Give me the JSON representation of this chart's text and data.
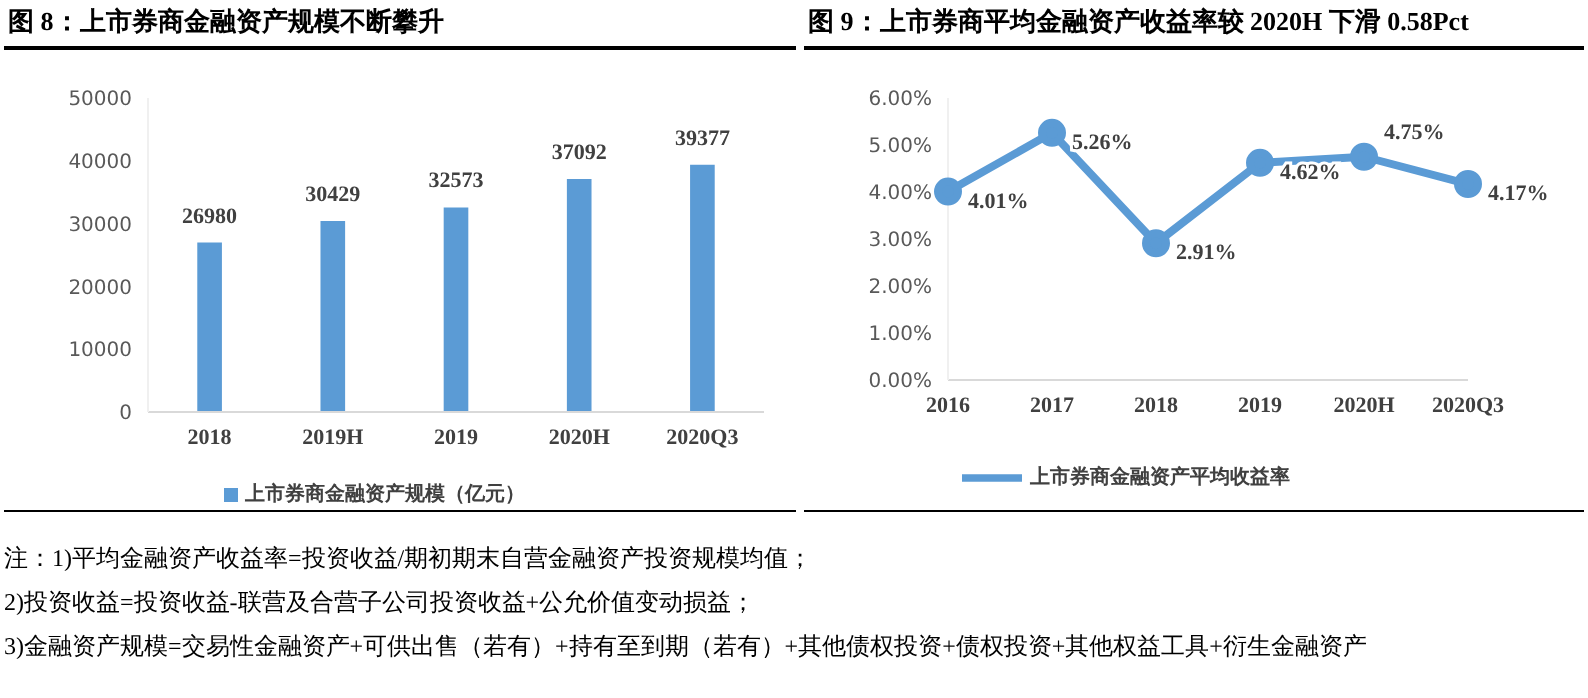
{
  "chart_data": [
    {
      "type": "bar",
      "title": "图 8：上市券商金融资产规模不断攀升",
      "categories": [
        "2018",
        "2019H",
        "2019",
        "2020H",
        "2020Q3"
      ],
      "series": [
        {
          "name": "上市券商金融资产规模（亿元）",
          "color": "#5b9bd5",
          "values": [
            26980,
            30429,
            32573,
            37092,
            39377
          ]
        }
      ],
      "ylim": [
        0,
        50000
      ],
      "yticks": [
        0,
        10000,
        20000,
        30000,
        40000,
        50000
      ],
      "data_labels": true,
      "legend": "bottom",
      "grid": false
    },
    {
      "type": "line",
      "title": "图 9：上市券商平均金融资产收益率较 2020H 下滑 0.58Pct",
      "categories": [
        "2016",
        "2017",
        "2018",
        "2019",
        "2020H",
        "2020Q3"
      ],
      "series": [
        {
          "name": "上市券商金融资产平均收益率",
          "color": "#5b9bd5",
          "values": [
            4.01,
            5.26,
            2.91,
            4.62,
            4.75,
            4.17
          ],
          "value_labels": [
            "4.01%",
            "5.26%",
            "2.91%",
            "4.62%",
            "4.75%",
            "4.17%"
          ]
        }
      ],
      "ylim": [
        0,
        6
      ],
      "yticks": [
        {
          "value": 0,
          "label": "0.00%"
        },
        {
          "value": 1,
          "label": "1.00%"
        },
        {
          "value": 2,
          "label": "2.00%"
        },
        {
          "value": 3,
          "label": "3.00%"
        },
        {
          "value": 4,
          "label": "4.00%"
        },
        {
          "value": 5,
          "label": "5.00%"
        },
        {
          "value": 6,
          "label": "6.00%"
        }
      ],
      "legend": "bottom",
      "marker": "circle",
      "line_style": "solid",
      "grid": false
    },
    {
      "type": "other",
      "annotations": [
        "注：1)平均金融资产收益率=投资收益/期初期末自营金融资产投资规模均值；",
        "2)投资收益=投资收益-联营及合营子公司投资收益+公允价值变动损益；",
        "3)金融资产规模=交易性金融资产+可供出售（若有）+持有至到期（若有）+其他债权投资+债权投资+其他权益工具+衍生金融资产"
      ]
    }
  ]
}
